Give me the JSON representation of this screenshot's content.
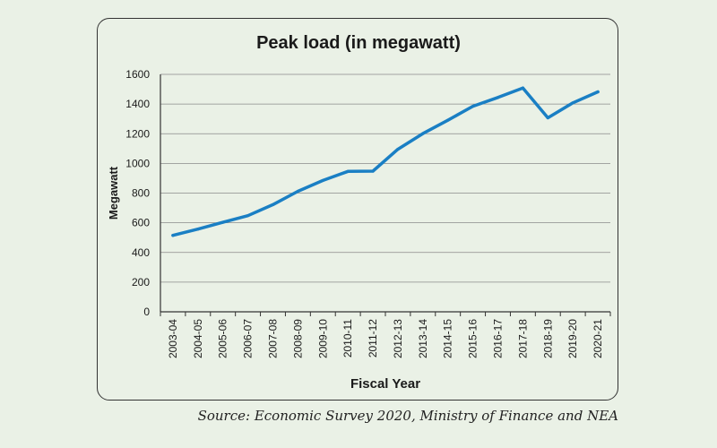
{
  "chart_data": {
    "type": "line",
    "title": "Peak load (in megawatt)",
    "xlabel": "Fiscal Year",
    "ylabel": "Megawatt",
    "ylim": [
      0,
      1600
    ],
    "yticks": [
      0,
      200,
      400,
      600,
      800,
      1000,
      1200,
      1400,
      1600
    ],
    "grid": true,
    "categories": [
      "2003-04",
      "2004-05",
      "2005-06",
      "2006-07",
      "2007-08",
      "2008-09",
      "2009-10",
      "2010-11",
      "2011-12",
      "2012-13",
      "2013-14",
      "2014-15",
      "2015-16",
      "2016-17",
      "2017-18",
      "2018-19",
      "2019-20",
      "2020-21"
    ],
    "series": [
      {
        "values": [
          515,
          557,
          603,
          648,
          722,
          812,
          885,
          946,
          948,
          1095,
          1201,
          1291,
          1385,
          1444,
          1508,
          1307,
          1408,
          1482
        ]
      }
    ],
    "line_color": "#1a7fc4"
  },
  "source": "Source: Economic Survey 2020, Ministry of Finance and NEA"
}
